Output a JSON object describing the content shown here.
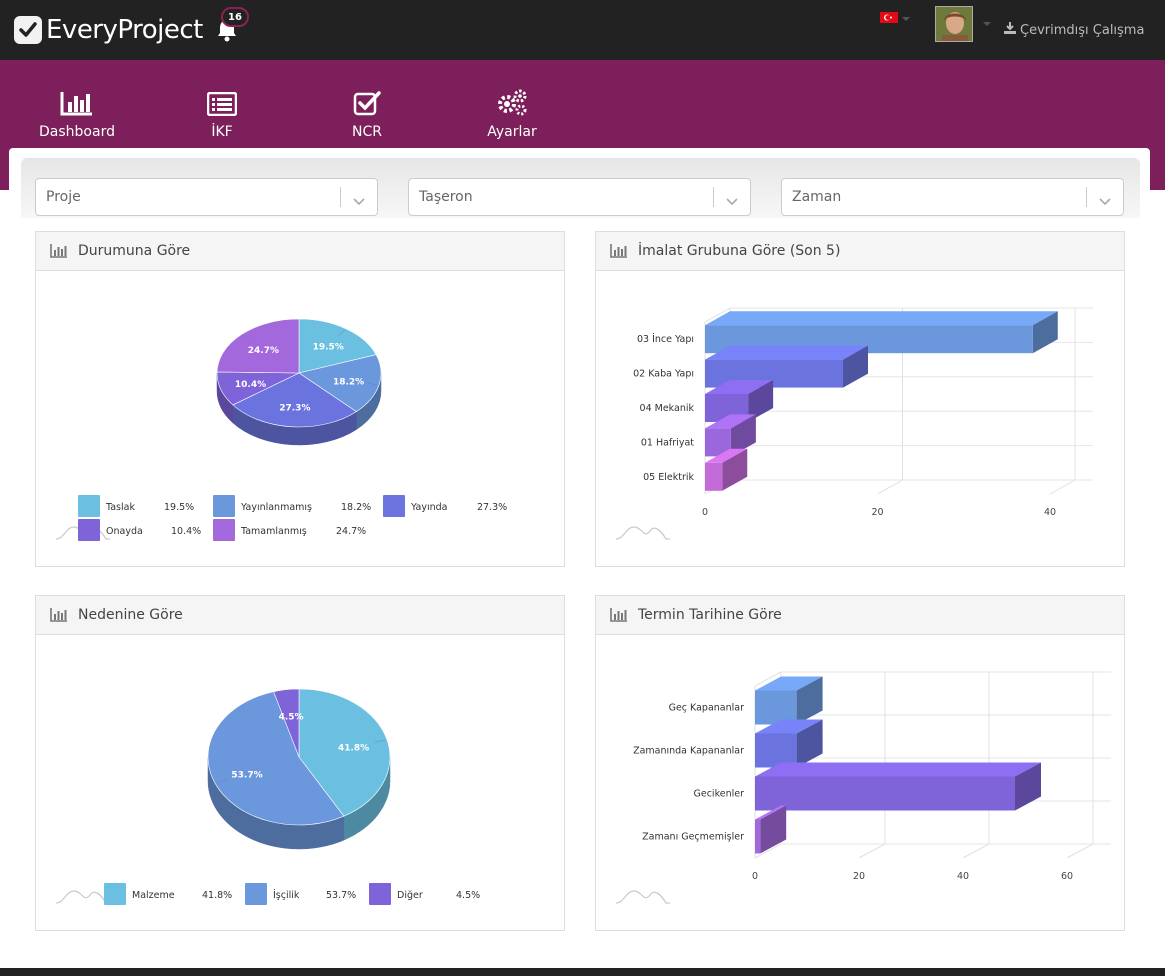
{
  "app": {
    "title": "EveryProject",
    "notifications": "16",
    "offline_label": "Çevrimdışı Çalışma"
  },
  "icons": {
    "logo": "check-square-icon",
    "bell": "bell-icon",
    "flag": "turkey-flag-icon",
    "download": "download-icon",
    "dashboard": "bar-chart-icon",
    "ikf": "list-icon",
    "ncr": "checkbox-icon",
    "settings": "gears-icon"
  },
  "nav": [
    {
      "label": "Dashboard"
    },
    {
      "label": "İKF"
    },
    {
      "label": "NCR"
    },
    {
      "label": "Ayarlar"
    }
  ],
  "filters": {
    "project": "Proje",
    "subcontractor": "Taşeron",
    "time": "Zaman"
  },
  "cards": {
    "status": "Durumuna Göre",
    "group": "İmalat Grubuna Göre (Son 5)",
    "reason": "Nedenine Göre",
    "due": "Termin Tarihine Göre"
  },
  "colors": {
    "topbar": "#222222",
    "nav": "#7c1f5a",
    "cyan": "#6bbfe0",
    "blue": "#6b97dd",
    "indigo": "#6b74de",
    "violet": "#7f63d9",
    "purple": "#a268dc"
  },
  "chart_data": [
    {
      "type": "pie",
      "title": "Durumuna Göre",
      "labels": [
        "Taslak",
        "Yayınlanmamış",
        "Yayında",
        "Onayda",
        "Tamamlanmış"
      ],
      "values": [
        19.5,
        18.2,
        27.3,
        10.4,
        24.7
      ],
      "value_labels": [
        "19.5%",
        "18.2%",
        "27.3%",
        "10.4%",
        "24.7%"
      ],
      "colors": [
        "#6bbfe0",
        "#6b97dd",
        "#6b74de",
        "#7f63d9",
        "#a268dc"
      ],
      "legend": "bottom"
    },
    {
      "type": "bar",
      "orientation": "horizontal",
      "title": "İmalat Grubuna Göre (Son 5)",
      "categories": [
        "03 İnce Yapı",
        "02 Kaba Yapı",
        "04 Mekanik",
        "01 Hafriyat",
        "05 Elektrik"
      ],
      "values": [
        38,
        16,
        5,
        3,
        2
      ],
      "colors": [
        "#6b97dd",
        "#6b74de",
        "#7f63d9",
        "#9b67dc",
        "#c36bd9"
      ],
      "xticks": [
        "0",
        "20",
        "40"
      ],
      "xlim": [
        0,
        40
      ]
    },
    {
      "type": "pie",
      "title": "Nedenine Göre",
      "labels": [
        "Malzeme",
        "İşçilik",
        "Diğer"
      ],
      "values": [
        41.8,
        53.7,
        4.5
      ],
      "value_labels": [
        "41.8%",
        "53.7%",
        "4.5%"
      ],
      "colors": [
        "#6bbfe0",
        "#6b97dd",
        "#7f63d9"
      ],
      "legend": "bottom"
    },
    {
      "type": "bar",
      "orientation": "horizontal",
      "title": "Termin Tarihine Göre",
      "categories": [
        "Geç Kapananlar",
        "Zamanında Kapananlar",
        "Gecikenler",
        "Zamanı Geçmemişler"
      ],
      "values": [
        8,
        8,
        50,
        1
      ],
      "colors": [
        "#6b97dd",
        "#6b74de",
        "#7f63d9",
        "#a268dc"
      ],
      "xticks": [
        "0",
        "20",
        "40",
        "60"
      ],
      "xlim": [
        0,
        60
      ]
    }
  ]
}
